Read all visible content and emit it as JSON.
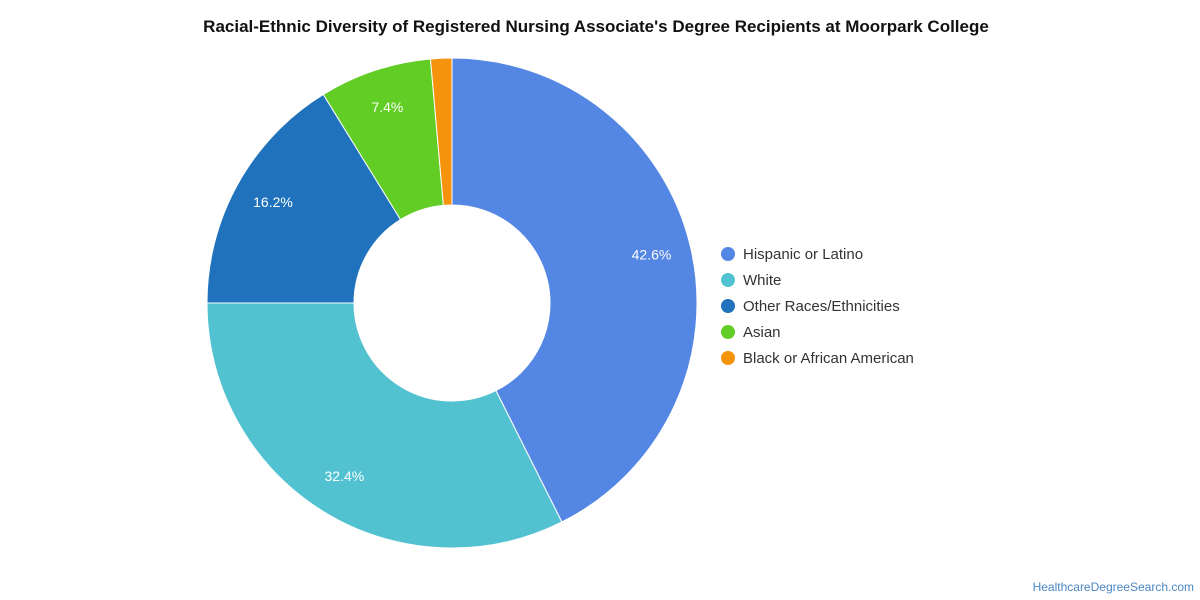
{
  "chart_data": {
    "type": "pie",
    "title": "Racial-Ethnic Diversity of Registered Nursing Associate's Degree Recipients at Moorpark College",
    "donut": true,
    "legend_position": "right",
    "slices": [
      {
        "label": "Hispanic or Latino",
        "value": 42.6,
        "display": "42.6%",
        "color": "#5486e3"
      },
      {
        "label": "White",
        "value": 32.4,
        "display": "32.4%",
        "color": "#52c2d1"
      },
      {
        "label": "Other Races/Ethnicities",
        "value": 16.2,
        "display": "16.2%",
        "color": "#1f72bb"
      },
      {
        "label": "Asian",
        "value": 7.4,
        "display": "7.4%",
        "color": "#62cd25"
      },
      {
        "label": "Black or African American",
        "value": 1.4,
        "display": "",
        "color": "#f6930c"
      }
    ]
  },
  "credit": "HealthcareDegreeSearch.com"
}
